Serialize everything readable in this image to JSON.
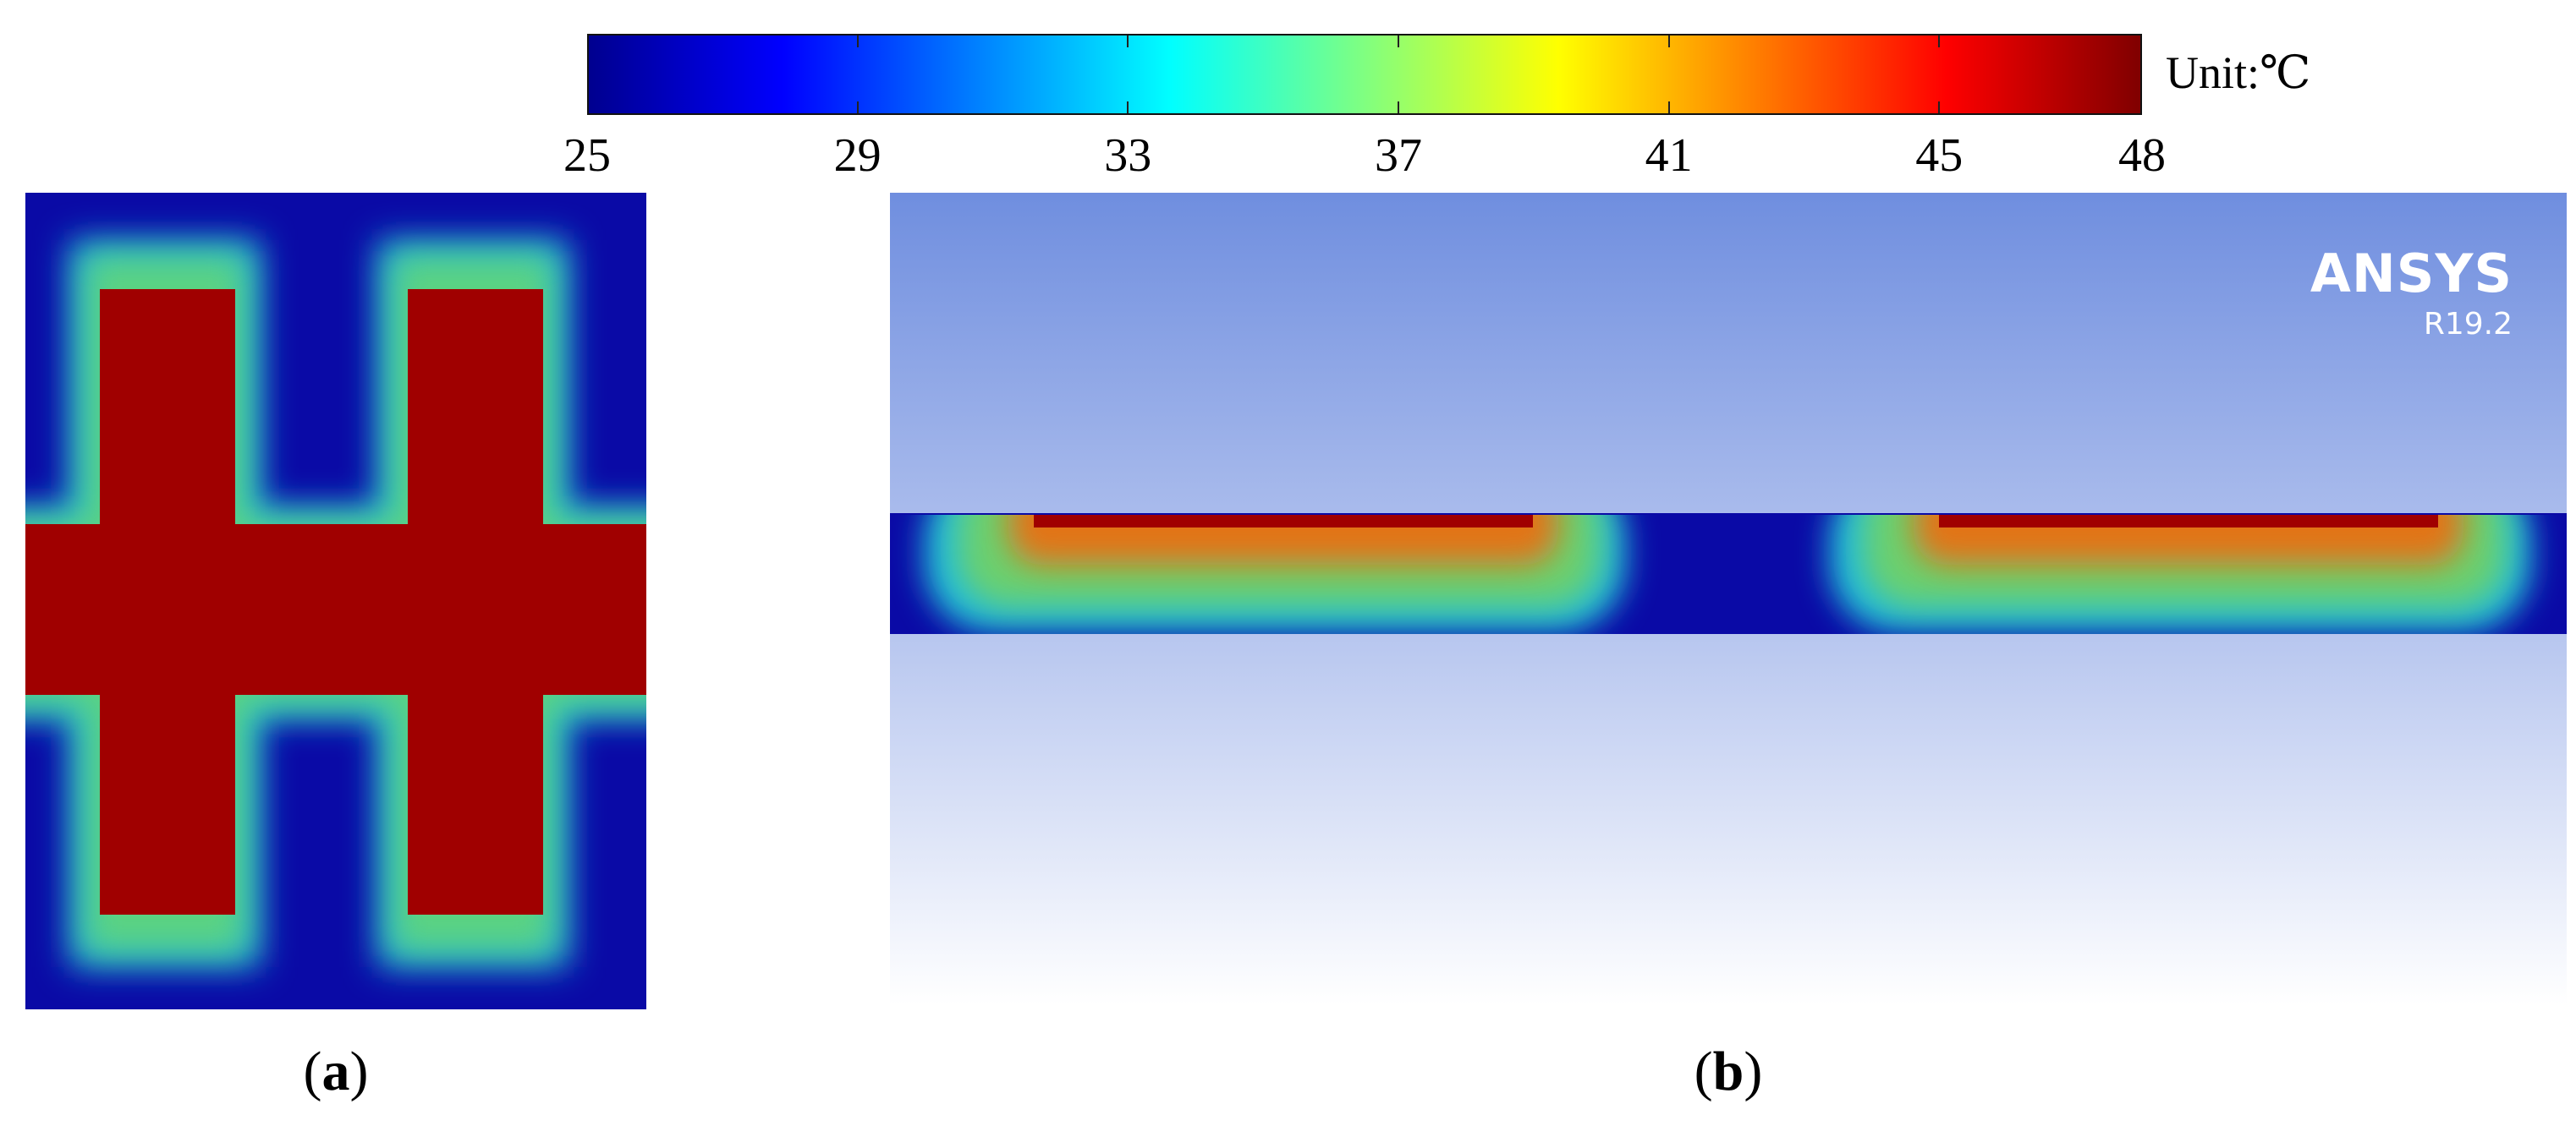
{
  "colorbar": {
    "ticks": [
      "25",
      "29",
      "33",
      "37",
      "41",
      "45",
      "48"
    ],
    "unit": "Unit:℃",
    "range": [
      25,
      48
    ],
    "colormap": "jet"
  },
  "panel_a": {
    "tag_open": "(",
    "tag_letter": "a",
    "tag_close": ")",
    "colors": {
      "background": "#0a0aa6",
      "hot": "#a00000"
    }
  },
  "panel_b": {
    "tag_open": "(",
    "tag_letter": "b",
    "tag_close": ")",
    "brand": "ANSYS",
    "version": "R19.2",
    "colors": {
      "sky_top": "#6f8edf",
      "sky_bottom": "#ffffff",
      "substrate": "#0a0aa6",
      "hot": "#a00000"
    }
  }
}
